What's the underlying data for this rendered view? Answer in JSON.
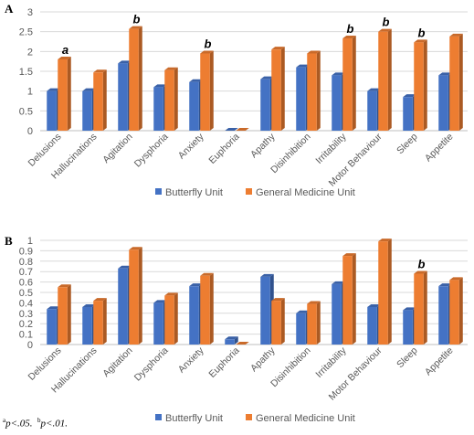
{
  "chart_data": [
    {
      "type": "bar",
      "panel_label": "A",
      "categories": [
        "Delusions",
        "Hallucinations",
        "Agitation",
        "Dysphoria",
        "Anxiety",
        "Euphoria",
        "Apathy",
        "Disinhibition",
        "Irritability",
        "Motor Behaviour",
        "Sleep",
        "Appetite"
      ],
      "series": [
        {
          "name": "Butterfly Unit",
          "color": "#4472c4",
          "values": [
            1.0,
            1.0,
            1.7,
            1.1,
            1.23,
            0.0,
            1.3,
            1.6,
            1.4,
            1.0,
            0.85,
            1.4
          ]
        },
        {
          "name": "General Medicine Unit",
          "color": "#ed7d31",
          "values": [
            1.8,
            1.47,
            2.57,
            1.53,
            1.95,
            0.0,
            2.05,
            1.95,
            2.33,
            2.5,
            2.23,
            2.38
          ]
        }
      ],
      "ylim": [
        0,
        3
      ],
      "yticks": [
        "0",
        "0.5",
        "1",
        "1.5",
        "2",
        "2.5",
        "3"
      ],
      "ytick_values": [
        0,
        0.5,
        1,
        1.5,
        2,
        2.5,
        3
      ],
      "grid": true,
      "legend": "bottom",
      "significance": [
        {
          "category": "Delusions",
          "label": "a"
        },
        {
          "category": "Agitation",
          "label": "b"
        },
        {
          "category": "Anxiety",
          "label": "b"
        },
        {
          "category": "Irritability",
          "label": "b"
        },
        {
          "category": "Motor Behaviour",
          "label": "b"
        },
        {
          "category": "Sleep",
          "label": "b"
        }
      ]
    },
    {
      "type": "bar",
      "panel_label": "B",
      "categories": [
        "Delusions",
        "Hallucinations",
        "Agitation",
        "Dysphoria",
        "Anxiety",
        "Euphoria",
        "Apathy",
        "Disinhibition",
        "Irritability",
        "Motor Behaviour",
        "Sleep",
        "Appetite"
      ],
      "series": [
        {
          "name": "Butterfly Unit",
          "color": "#4472c4",
          "values": [
            0.34,
            0.36,
            0.73,
            0.4,
            0.56,
            0.05,
            0.65,
            0.3,
            0.58,
            0.36,
            0.33,
            0.56
          ]
        },
        {
          "name": "General Medicine Unit",
          "color": "#ed7d31",
          "values": [
            0.55,
            0.42,
            0.91,
            0.47,
            0.66,
            0.0,
            0.42,
            0.39,
            0.85,
            0.99,
            0.68,
            0.62
          ]
        }
      ],
      "ylim": [
        0,
        1
      ],
      "yticks": [
        "0",
        "0.1",
        "0.2",
        "0.3",
        "0.4",
        "0.5",
        "0.6",
        "0.7",
        "0.8",
        "0.9",
        "1"
      ],
      "ytick_values": [
        0,
        0.1,
        0.2,
        0.3,
        0.4,
        0.5,
        0.6,
        0.7,
        0.8,
        0.9,
        1
      ],
      "grid": true,
      "legend": "bottom",
      "significance": [
        {
          "category": "Sleep",
          "label": "b"
        }
      ]
    }
  ],
  "footnote": {
    "a_mark": "a",
    "a_text": "p<.05.",
    "b_mark": "b",
    "b_text": "p<.01."
  }
}
